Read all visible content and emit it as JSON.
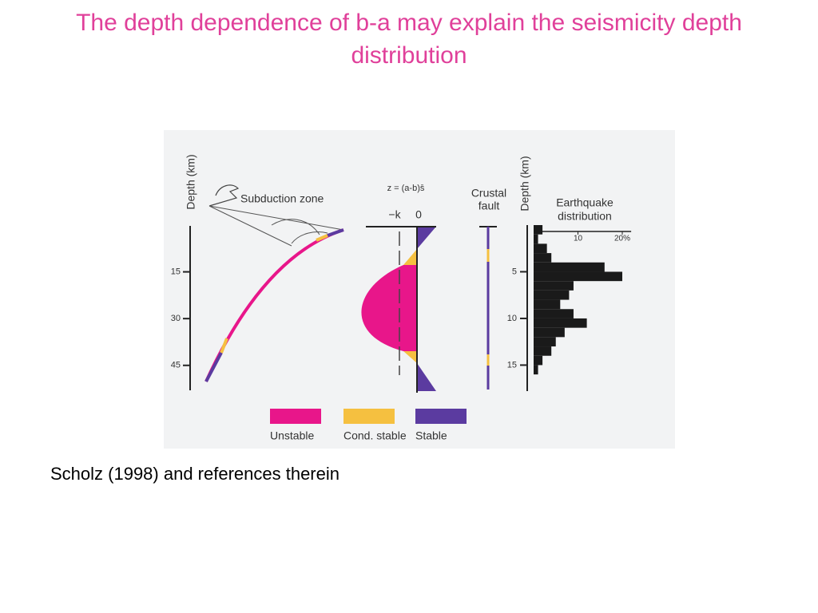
{
  "title": "The depth dependence of b-a may explain the seismicity depth distribution",
  "figure": {
    "subduction": {
      "axis_label": "Depth (km)",
      "label": "Subduction zone",
      "ylim": [
        0,
        53
      ],
      "yticks": [
        15,
        30,
        45
      ]
    },
    "profile": {
      "formula": "z = (a-b)s̄",
      "ticks": [
        "−k",
        "0"
      ]
    },
    "crustal": {
      "label_lines": [
        "Crustal",
        "fault"
      ]
    },
    "histogram": {
      "type": "histogram",
      "axis_label": "Depth (km)",
      "title_lines": [
        "Earthquake",
        "distribution"
      ],
      "bins": [
        0,
        1,
        2,
        3,
        4,
        5,
        6,
        7,
        8,
        9,
        10,
        11,
        12,
        13,
        14,
        15,
        16
      ],
      "values": [
        2,
        1,
        3,
        4,
        16,
        20,
        9,
        8,
        6,
        9,
        12,
        7,
        5,
        4,
        2,
        1
      ],
      "xlim": [
        0,
        22
      ],
      "xticks": [
        10,
        {
          "value": 20,
          "label": "20%"
        }
      ],
      "ylim": [
        0,
        17.7
      ],
      "yticks": [
        5,
        10,
        15
      ]
    },
    "legend": [
      {
        "name": "Unstable",
        "color": "#e8168a"
      },
      {
        "name": "Cond. stable",
        "color": "#f5c040"
      },
      {
        "name": "Stable",
        "color": "#5b3ba0"
      }
    ]
  },
  "caption": "Scholz (1998) and references therein"
}
